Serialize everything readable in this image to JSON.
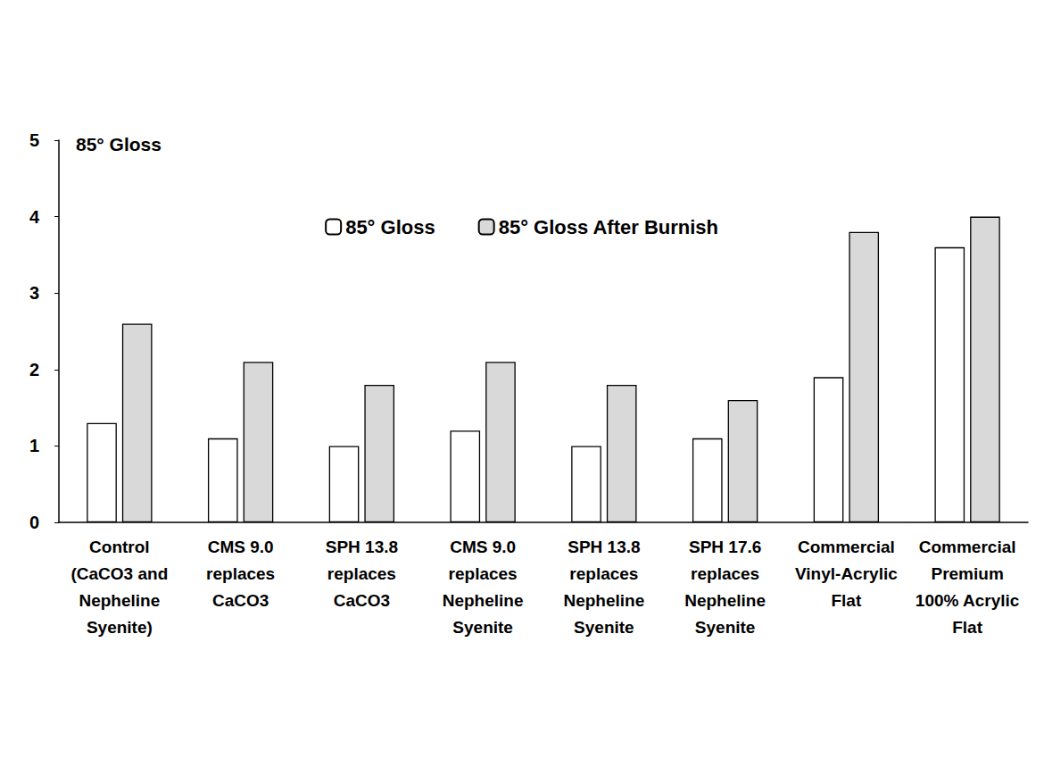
{
  "chart_data": {
    "type": "bar",
    "title": "85° Gloss",
    "categories": [
      "Control\n(CaCO3 and\nNepheline\nSyenite)",
      "CMS 9.0\nreplaces\nCaCO3",
      "SPH 13.8\nreplaces\nCaCO3",
      "CMS 9.0\nreplaces\nNepheline\nSyenite",
      "SPH 13.8\nreplaces\nNepheline\nSyenite",
      "SPH 17.6\nreplaces\nNepheline\nSyenite",
      "Commercial\nVinyl-Acrylic\nFlat",
      "Commercial\nPremium\n100% Acrylic\nFlat"
    ],
    "series": [
      {
        "name": "85° Gloss",
        "color": "#ffffff",
        "values": [
          1.3,
          1.1,
          1.0,
          1.2,
          1.0,
          1.1,
          1.9,
          3.6
        ]
      },
      {
        "name": "85° Gloss After Burnish",
        "color": "#d9d9d9",
        "values": [
          2.6,
          2.1,
          1.8,
          2.1,
          1.8,
          1.6,
          3.8,
          4.0
        ]
      }
    ],
    "ylim": [
      0,
      5
    ],
    "yticks": [
      0,
      1,
      2,
      3,
      4,
      5
    ],
    "grid": false,
    "legend": "top"
  }
}
